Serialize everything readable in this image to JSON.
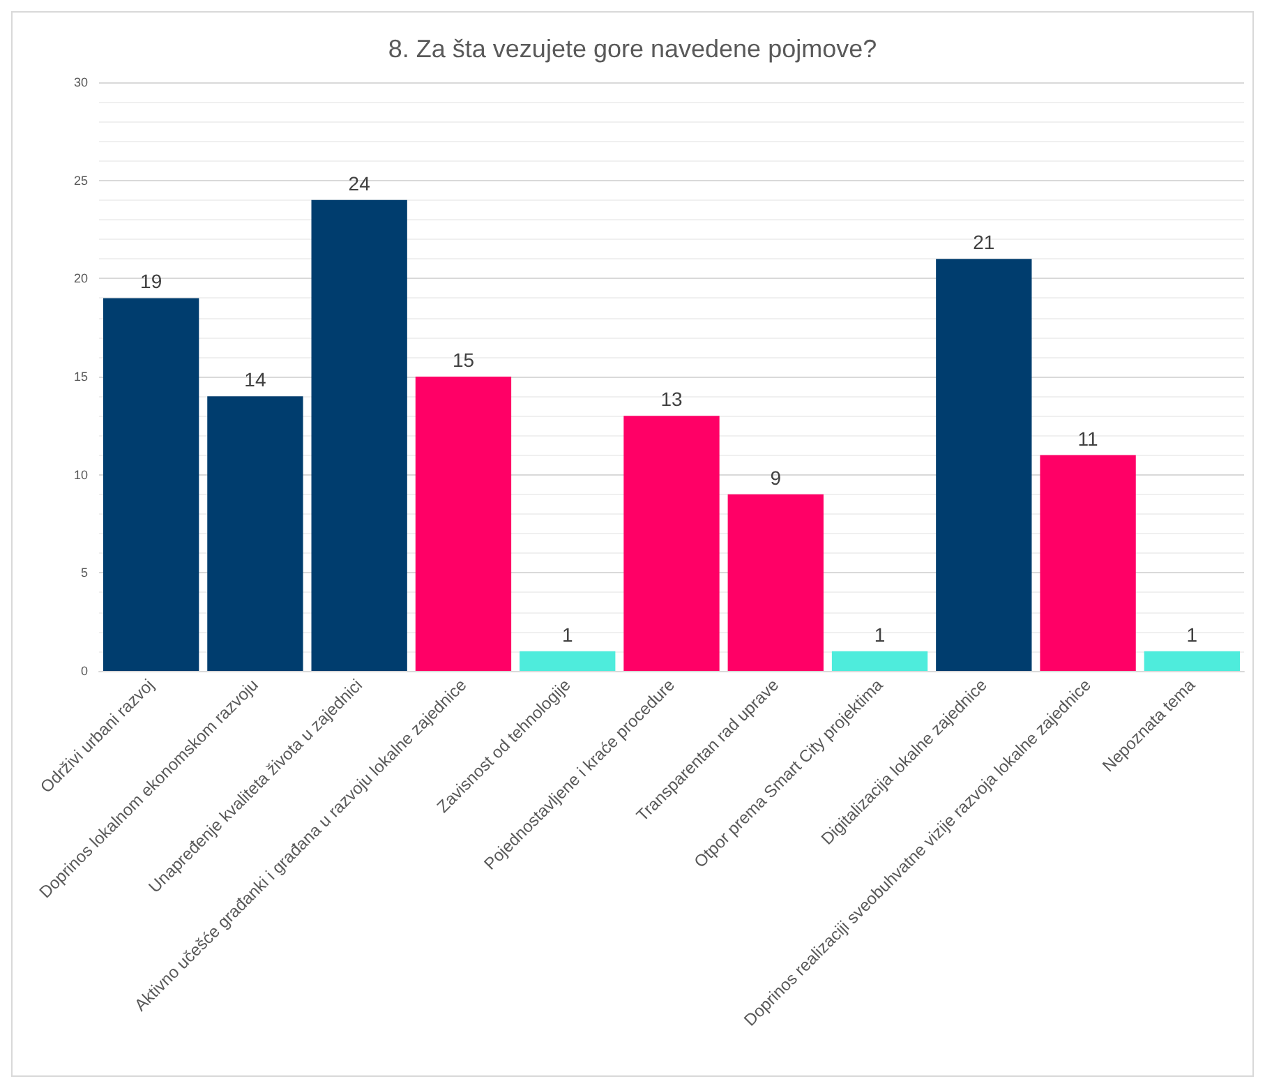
{
  "chart_data": {
    "type": "bar",
    "title": "8. Za šta vezujete gore navedene pojmove?",
    "categories": [
      "Održivi urbani razvoj",
      "Doprinos lokalnom ekonomskom razvoju",
      "Unapređenje kvaliteta života u zajednici",
      "Aktivno učešće građanki i građana u razvoju lokalne zajednice",
      "Zavisnost od tehnologije",
      "Pojednostavljene i kraće procedure",
      "Transparentan rad uprave",
      "Otpor prema Smart City projektima",
      "Digitalizacija lokalne zajednice",
      "Doprinos realizaciji sveobuhvatne vizije razvoja lokalne zajednice",
      "Nepoznata tema"
    ],
    "values": [
      19,
      14,
      24,
      15,
      1,
      13,
      9,
      1,
      21,
      11,
      1
    ],
    "colors": [
      "#003d6e",
      "#003d6e",
      "#003d6e",
      "#ff0066",
      "#4eecdc",
      "#ff0066",
      "#ff0066",
      "#4eecdc",
      "#003d6e",
      "#ff0066",
      "#4eecdc"
    ],
    "ylim": [
      0,
      30
    ],
    "yticks": [
      0,
      5,
      10,
      15,
      20,
      25,
      30
    ],
    "grid": true,
    "data_labels": true
  }
}
